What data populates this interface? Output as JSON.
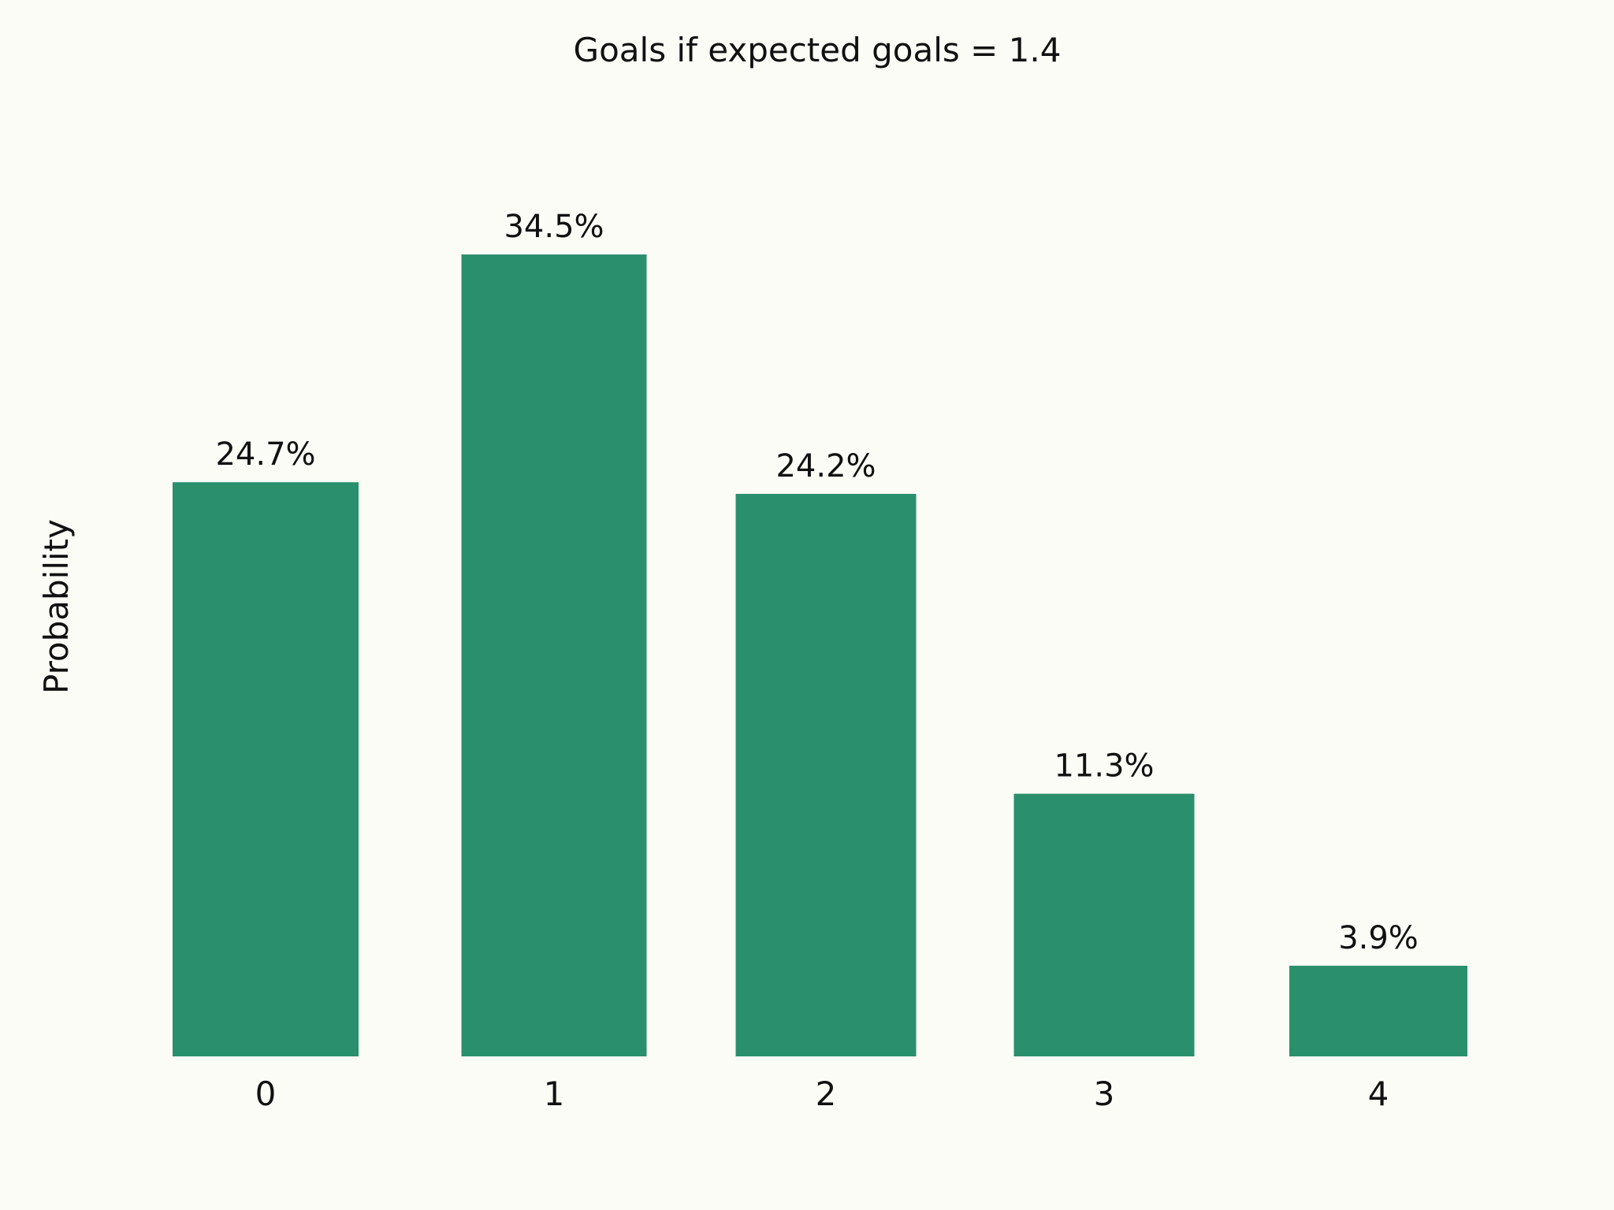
{
  "chart_data": {
    "type": "bar",
    "title": "Goals if expected goals = 1.4",
    "xlabel": "",
    "ylabel": "Probability",
    "categories": [
      "0",
      "1",
      "2",
      "3",
      "4"
    ],
    "values": [
      24.7,
      34.5,
      24.2,
      11.3,
      3.9
    ],
    "data_labels": [
      "24.7%",
      "34.5%",
      "24.2%",
      "11.3%",
      "3.9%"
    ],
    "ylim": [
      0,
      34.5
    ],
    "grid": false,
    "legend": "none",
    "bar_color": "#2a8f6c",
    "background_color": "#fcfcf7",
    "text_color": "#111111"
  }
}
